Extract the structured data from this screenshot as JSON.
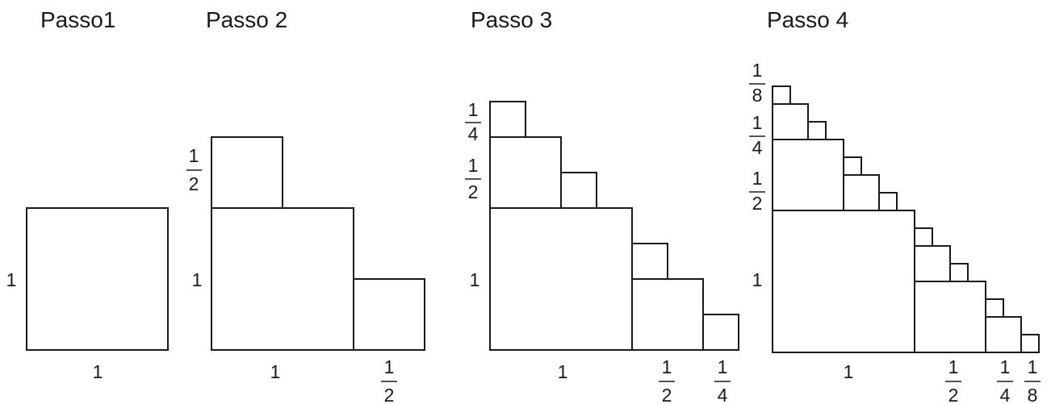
{
  "steps": [
    {
      "title": "Passo1",
      "labels": {
        "side": "1",
        "bottom": "1"
      }
    },
    {
      "title": "Passo 2",
      "labels": {
        "side": "1",
        "bottom": "1",
        "half_left": {
          "num": "1",
          "den": "2"
        },
        "half_bottom": {
          "num": "1",
          "den": "2"
        }
      }
    },
    {
      "title": "Passo 3",
      "labels": {
        "side": "1",
        "bottom": "1",
        "half_left": {
          "num": "1",
          "den": "2"
        },
        "quarter_left": {
          "num": "1",
          "den": "4"
        },
        "half_bottom": {
          "num": "1",
          "den": "2"
        },
        "quarter_bottom": {
          "num": "1",
          "den": "4"
        }
      }
    },
    {
      "title": "Passo 4",
      "labels": {
        "side": "1",
        "bottom": "1",
        "half_left": {
          "num": "1",
          "den": "2"
        },
        "quarter_left": {
          "num": "1",
          "den": "4"
        },
        "eighth_left": {
          "num": "1",
          "den": "8"
        },
        "half_bottom": {
          "num": "1",
          "den": "2"
        },
        "quarter_bottom": {
          "num": "1",
          "den": "4"
        },
        "eighth_bottom": {
          "num": "1",
          "den": "8"
        }
      }
    }
  ]
}
